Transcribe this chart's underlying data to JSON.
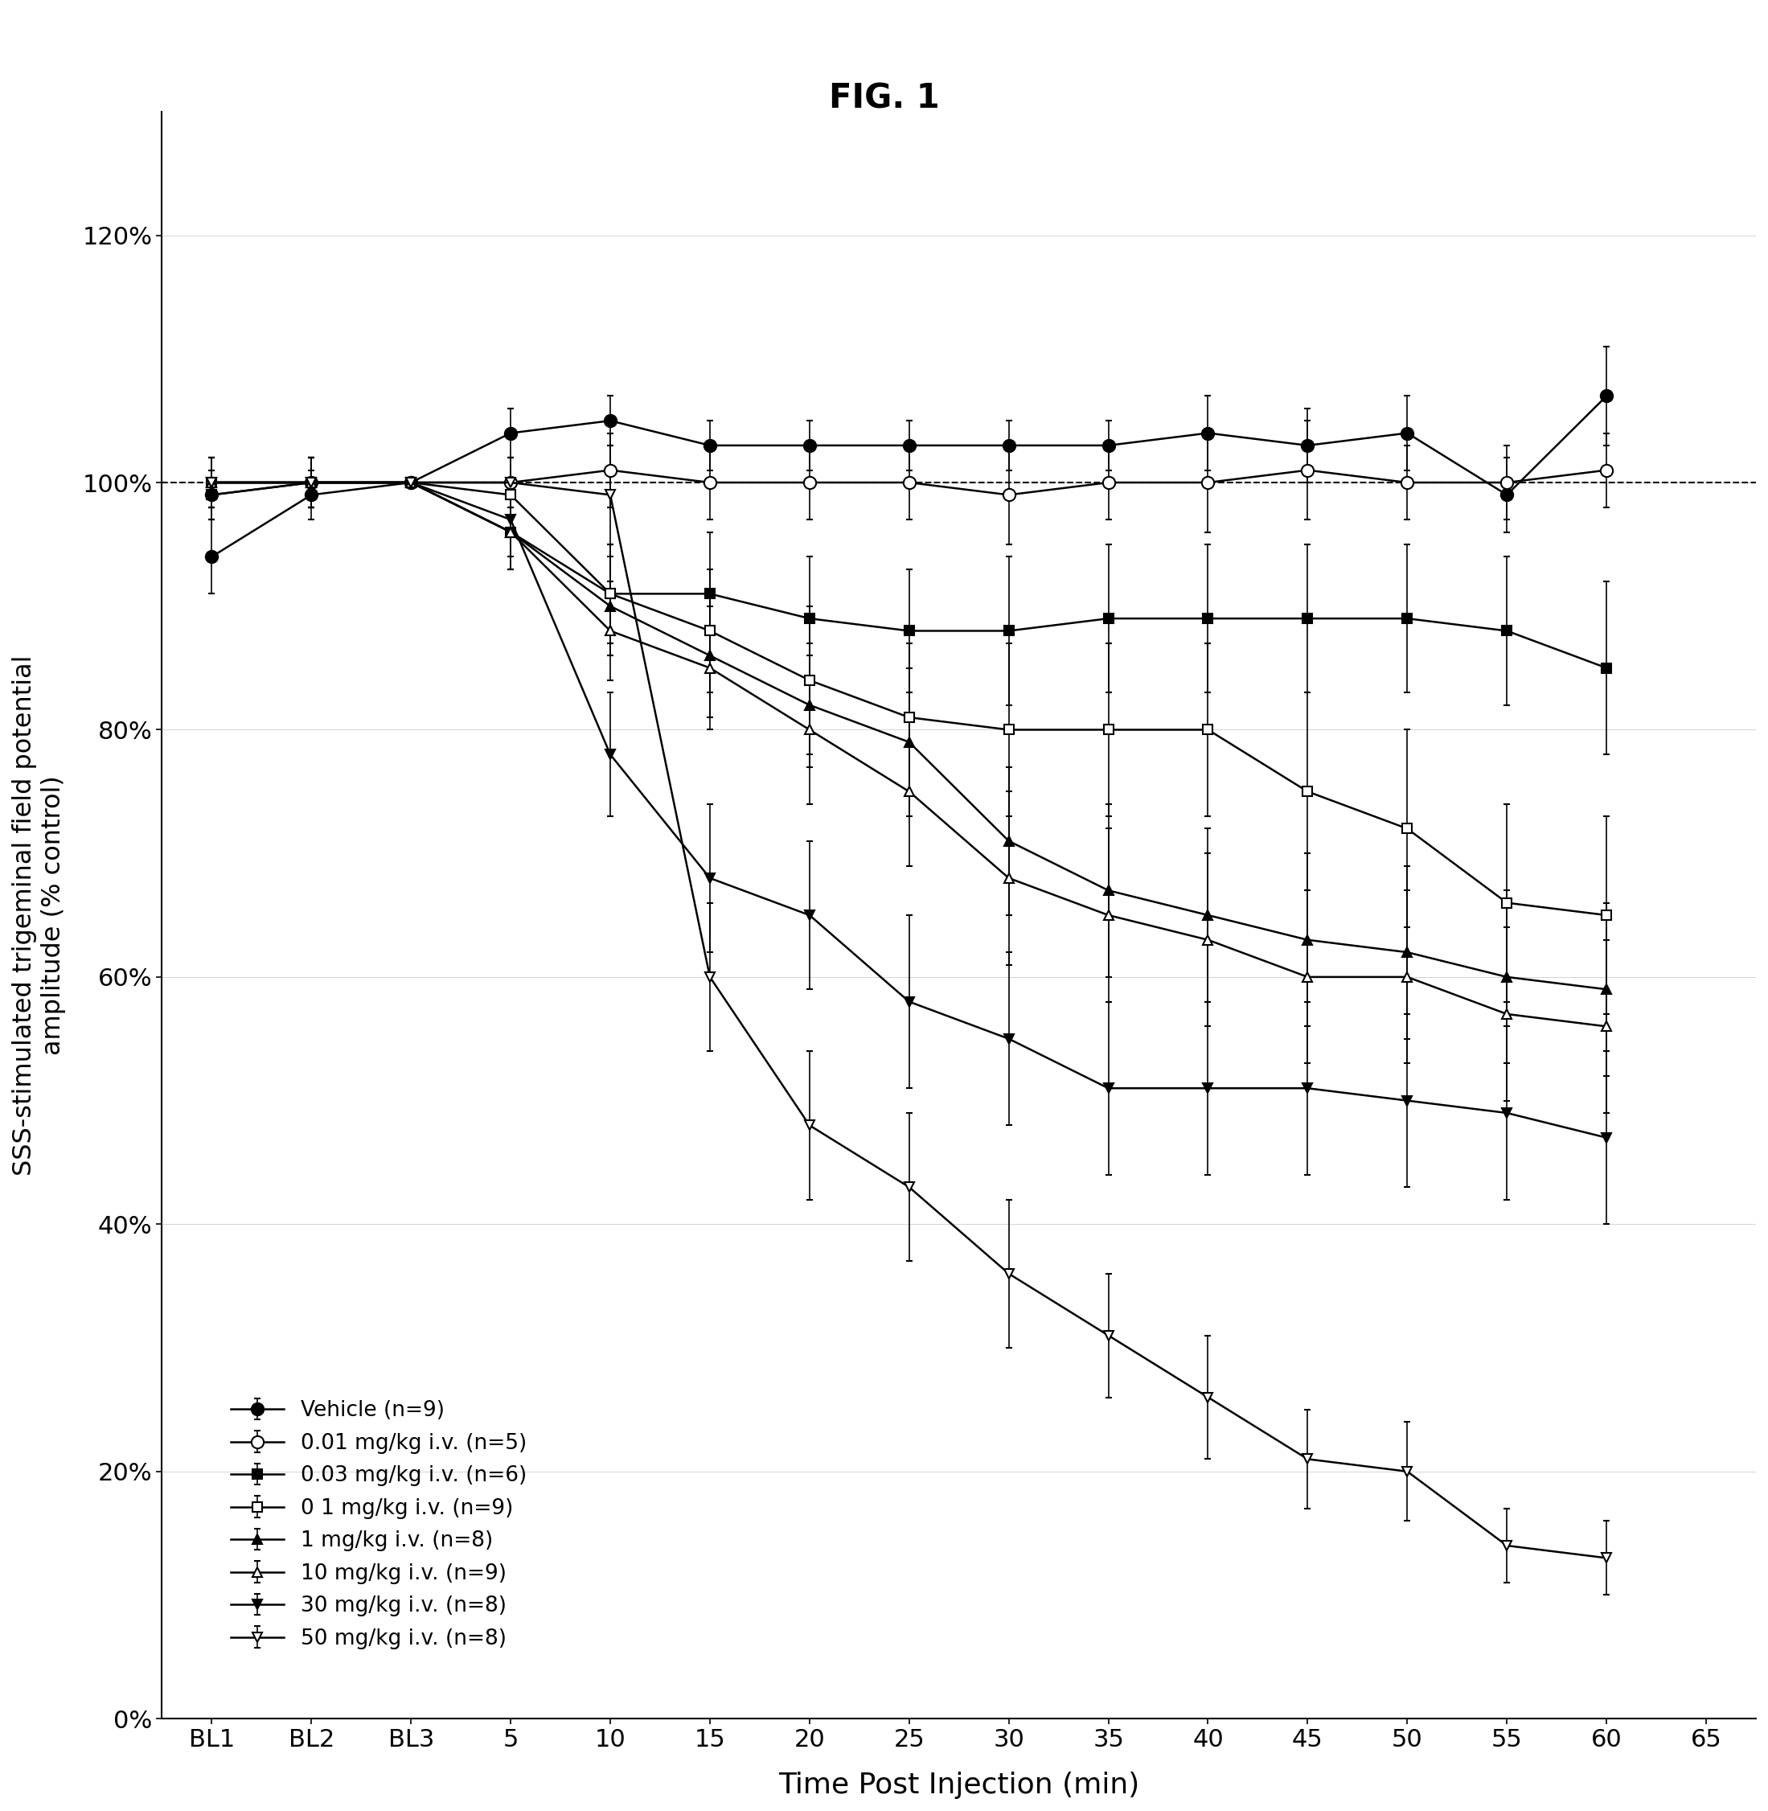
{
  "title": "FIG. 1",
  "xlabel": "Time Post Injection (min)",
  "ylabel": "SSS-stimulated trigeminal field potential\namplitude (% control)",
  "x_tick_labels": [
    "BL1",
    "BL2",
    "BL3",
    "5",
    "10",
    "15",
    "20",
    "25",
    "30",
    "35",
    "40",
    "45",
    "50",
    "55",
    "60",
    "65"
  ],
  "x_values": [
    0,
    1,
    2,
    3,
    4,
    5,
    6,
    7,
    8,
    9,
    10,
    11,
    12,
    13,
    14,
    15
  ],
  "ylim": [
    0,
    130
  ],
  "yticks": [
    0,
    20,
    40,
    60,
    80,
    100,
    120
  ],
  "series": [
    {
      "label": "Vehicle (n=9)",
      "color": "black",
      "marker": "o",
      "fillstyle": "full",
      "markersize": 11,
      "linewidth": 1.8,
      "y": [
        94,
        99,
        100,
        104,
        105,
        103,
        103,
        103,
        103,
        103,
        104,
        103,
        104,
        99,
        107,
        null
      ],
      "yerr": [
        3,
        2,
        0,
        2,
        2,
        2,
        2,
        2,
        2,
        2,
        3,
        3,
        3,
        3,
        4,
        null
      ]
    },
    {
      "label": "0.01 mg/kg i.v. (n=5)",
      "color": "black",
      "marker": "o",
      "fillstyle": "none",
      "markersize": 11,
      "linewidth": 1.8,
      "y": [
        99,
        100,
        100,
        100,
        101,
        100,
        100,
        100,
        99,
        100,
        100,
        101,
        100,
        100,
        101,
        null
      ],
      "yerr": [
        2,
        2,
        0,
        2,
        3,
        3,
        3,
        3,
        4,
        3,
        4,
        4,
        3,
        3,
        3,
        null
      ]
    },
    {
      "label": "0.03 mg/kg i.v. (n=6)",
      "color": "black",
      "marker": "s",
      "fillstyle": "full",
      "markersize": 9,
      "linewidth": 1.8,
      "y": [
        99,
        100,
        100,
        96,
        91,
        91,
        89,
        88,
        88,
        89,
        89,
        89,
        89,
        88,
        85,
        null
      ],
      "yerr": [
        2,
        2,
        0,
        3,
        4,
        5,
        5,
        5,
        6,
        6,
        6,
        6,
        6,
        6,
        7,
        null
      ]
    },
    {
      "label": "0 1 mg/kg i.v. (n=9)",
      "color": "black",
      "marker": "s",
      "fillstyle": "none",
      "markersize": 9,
      "linewidth": 1.8,
      "y": [
        100,
        100,
        100,
        99,
        91,
        88,
        84,
        81,
        80,
        80,
        80,
        75,
        72,
        66,
        65,
        null
      ],
      "yerr": [
        2,
        2,
        0,
        3,
        4,
        5,
        6,
        6,
        7,
        7,
        7,
        8,
        8,
        8,
        8,
        null
      ]
    },
    {
      "label": "1 mg/kg i.v. (n=8)",
      "color": "black",
      "marker": "^",
      "fillstyle": "full",
      "markersize": 9,
      "linewidth": 1.8,
      "y": [
        100,
        100,
        100,
        96,
        90,
        86,
        82,
        79,
        71,
        67,
        65,
        63,
        62,
        60,
        59,
        null
      ],
      "yerr": [
        2,
        2,
        0,
        3,
        4,
        5,
        5,
        6,
        6,
        7,
        7,
        7,
        7,
        7,
        7,
        null
      ]
    },
    {
      "label": "10 mg/kg i.v. (n=9)",
      "color": "black",
      "marker": "^",
      "fillstyle": "none",
      "markersize": 9,
      "linewidth": 1.8,
      "y": [
        100,
        100,
        100,
        96,
        88,
        85,
        80,
        75,
        68,
        65,
        63,
        60,
        60,
        57,
        56,
        null
      ],
      "yerr": [
        2,
        2,
        0,
        3,
        4,
        5,
        6,
        6,
        7,
        7,
        7,
        7,
        7,
        7,
        7,
        null
      ]
    },
    {
      "label": "30 mg/kg i.v. (n=8)",
      "color": "black",
      "marker": "v",
      "fillstyle": "full",
      "markersize": 9,
      "linewidth": 1.8,
      "y": [
        100,
        100,
        100,
        97,
        78,
        68,
        65,
        58,
        55,
        51,
        51,
        51,
        50,
        49,
        47,
        null
      ],
      "yerr": [
        2,
        2,
        0,
        3,
        5,
        6,
        6,
        7,
        7,
        7,
        7,
        7,
        7,
        7,
        7,
        null
      ]
    },
    {
      "label": "50 mg/kg i.v. (n=8)",
      "color": "black",
      "marker": "v",
      "fillstyle": "none",
      "markersize": 9,
      "linewidth": 1.8,
      "y": [
        100,
        100,
        100,
        100,
        99,
        60,
        48,
        43,
        36,
        31,
        26,
        21,
        20,
        14,
        13,
        null
      ],
      "yerr": [
        2,
        2,
        0,
        2,
        4,
        6,
        6,
        6,
        6,
        5,
        5,
        4,
        4,
        3,
        3,
        null
      ]
    }
  ]
}
